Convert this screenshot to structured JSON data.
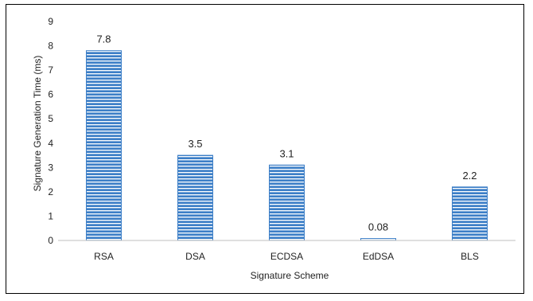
{
  "chart_data": {
    "type": "bar",
    "categories": [
      "RSA",
      "DSA",
      "ECDSA",
      "EdDSA",
      "BLS"
    ],
    "values": [
      7.8,
      3.5,
      3.1,
      0.08,
      2.2
    ],
    "data_labels": [
      "7.8",
      "3.5",
      "3.1",
      "0.08",
      "2.2"
    ],
    "title": "",
    "xlabel": "Signature Scheme",
    "ylabel": "Signature Generation Time (ms)",
    "ylim": [
      0,
      9
    ],
    "yticks": [
      0,
      1,
      2,
      3,
      4,
      5,
      6,
      7,
      8,
      9
    ],
    "grid": false,
    "legend": "none",
    "bar_color": "#3d7fc7",
    "bar_stripe_color": "#ffffff"
  }
}
